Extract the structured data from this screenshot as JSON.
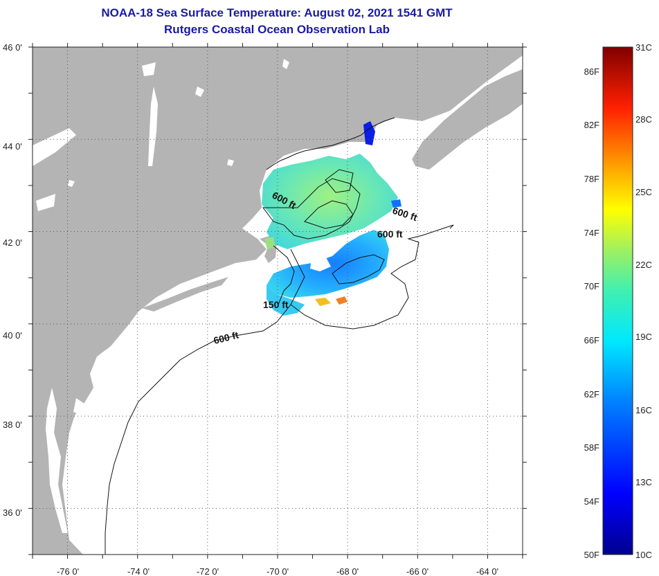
{
  "title_line1": "NOAA-18 Sea Surface Temperature:  August 02, 2021 1541 GMT",
  "title_line2": "Rutgers Coastal Ocean Observation Lab",
  "map": {
    "lon_range": [
      -77,
      -63
    ],
    "lat_range": [
      35,
      46
    ],
    "lon_labels": [
      "-76 0'",
      "-74 0'",
      "-72 0'",
      "-70 0'",
      "-68 0'",
      "-66 0'",
      "-64 0'"
    ],
    "lat_labels": [
      "46 0'",
      "44 0'",
      "42 0'",
      "40 0'",
      "38 0'",
      "36 0'"
    ],
    "land_color": "#b4b4b4",
    "contour_labels": [
      "600 ft",
      "600 ft",
      "600 ft",
      "150 ft",
      "600 ft"
    ]
  },
  "colorbar": {
    "celsius_labels": [
      "31C",
      "28C",
      "25C",
      "22C",
      "19C",
      "16C",
      "13C",
      "10C"
    ],
    "fahrenheit_labels": [
      "86F",
      "82F",
      "78F",
      "74F",
      "70F",
      "66F",
      "62F",
      "58F",
      "54F",
      "50F"
    ],
    "colors": [
      "#00008f",
      "#0000ff",
      "#0080ff",
      "#00ffff",
      "#80ff80",
      "#ffff00",
      "#ff8000",
      "#ff0000",
      "#800000"
    ]
  }
}
